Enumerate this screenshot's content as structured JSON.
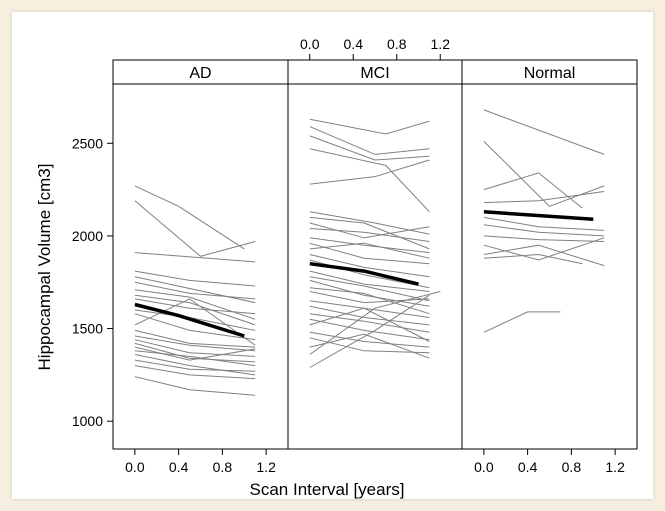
{
  "chart_data": {
    "type": "line",
    "ylabel": "Hippocampal Volume [cm3]",
    "xlabel": "Scan Interval [years]",
    "xlim": [
      -0.2,
      1.4
    ],
    "ylim": [
      850,
      2820
    ],
    "x_ticks": [
      "0.0",
      "0.4",
      "0.8",
      "1.2"
    ],
    "x_tick_values": [
      0.0,
      0.4,
      0.8,
      1.2
    ],
    "y_ticks": [
      "1000",
      "1500",
      "2000",
      "2500"
    ],
    "y_tick_values": [
      1000,
      1500,
      2000,
      2500
    ],
    "grid": false,
    "line_colors": {
      "individual": "#808080",
      "mean": "#000000"
    },
    "panels": [
      {
        "name": "AD",
        "x_axis_side": "bottom",
        "mean": {
          "x": [
            0.0,
            0.4,
            1.0
          ],
          "y": [
            1630,
            1570,
            1460
          ]
        },
        "individual": [
          {
            "x": [
              0.0,
              0.4,
              1.0
            ],
            "y": [
              2270,
              2160,
              1930
            ]
          },
          {
            "x": [
              0.0,
              0.6,
              1.1
            ],
            "y": [
              2190,
              1890,
              1970
            ]
          },
          {
            "x": [
              0.0,
              1.1
            ],
            "y": [
              1910,
              1860
            ]
          },
          {
            "x": [
              0.0,
              0.5,
              1.1
            ],
            "y": [
              1810,
              1760,
              1730
            ]
          },
          {
            "x": [
              0.0,
              1.1
            ],
            "y": [
              1780,
              1640
            ]
          },
          {
            "x": [
              0.0,
              0.5,
              1.1
            ],
            "y": [
              1750,
              1690,
              1660
            ]
          },
          {
            "x": [
              0.0,
              0.5,
              1.1
            ],
            "y": [
              1710,
              1670,
              1550
            ]
          },
          {
            "x": [
              0.0,
              0.5,
              1.1
            ],
            "y": [
              1680,
              1640,
              1520
            ]
          },
          {
            "x": [
              0.0,
              0.5,
              1.1
            ],
            "y": [
              1660,
              1610,
              1580
            ]
          },
          {
            "x": [
              0.0,
              0.5,
              1.1
            ],
            "y": [
              1600,
              1560,
              1490
            ]
          },
          {
            "x": [
              0.0,
              0.5,
              1.1
            ],
            "y": [
              1580,
              1490,
              1440
            ]
          },
          {
            "x": [
              0.0,
              0.5,
              1.1
            ],
            "y": [
              1520,
              1660,
              1410
            ]
          },
          {
            "x": [
              0.0,
              0.5,
              1.1
            ],
            "y": [
              1490,
              1420,
              1400
            ]
          },
          {
            "x": [
              0.0,
              0.5,
              1.1
            ],
            "y": [
              1460,
              1410,
              1380
            ]
          },
          {
            "x": [
              0.0,
              0.5,
              1.1
            ],
            "y": [
              1440,
              1370,
              1350
            ]
          },
          {
            "x": [
              0.0,
              0.5,
              1.1
            ],
            "y": [
              1420,
              1340,
              1320
            ]
          },
          {
            "x": [
              0.0,
              0.5,
              1.1
            ],
            "y": [
              1400,
              1330,
              1390
            ]
          },
          {
            "x": [
              0.0,
              0.5,
              1.1
            ],
            "y": [
              1380,
              1350,
              1300
            ]
          },
          {
            "x": [
              0.0,
              0.5,
              1.1
            ],
            "y": [
              1360,
              1300,
              1250
            ]
          },
          {
            "x": [
              0.0,
              0.5,
              1.1
            ],
            "y": [
              1330,
              1280,
              1270
            ]
          },
          {
            "x": [
              0.0,
              0.5,
              1.1
            ],
            "y": [
              1300,
              1250,
              1230
            ]
          },
          {
            "x": [
              0.0,
              0.5,
              1.1
            ],
            "y": [
              1240,
              1170,
              1140
            ]
          }
        ]
      },
      {
        "name": "MCI",
        "x_axis_side": "top",
        "mean": {
          "x": [
            0.0,
            0.5,
            1.0
          ],
          "y": [
            1850,
            1810,
            1740
          ]
        },
        "individual": [
          {
            "x": [
              0.0,
              0.7,
              1.1
            ],
            "y": [
              2630,
              2550,
              2620
            ]
          },
          {
            "x": [
              0.0,
              0.6,
              1.1
            ],
            "y": [
              2590,
              2440,
              2470
            ]
          },
          {
            "x": [
              0.0,
              0.6,
              1.1
            ],
            "y": [
              2540,
              2410,
              2430
            ]
          },
          {
            "x": [
              0.0,
              0.7,
              1.1
            ],
            "y": [
              2470,
              2380,
              2130
            ]
          },
          {
            "x": [
              0.0,
              0.6,
              1.1
            ],
            "y": [
              2280,
              2320,
              2410
            ]
          },
          {
            "x": [
              0.0,
              0.6,
              1.1
            ],
            "y": [
              2130,
              2070,
              2010
            ]
          },
          {
            "x": [
              0.0,
              0.5,
              1.1
            ],
            "y": [
              2100,
              2070,
              1930
            ]
          },
          {
            "x": [
              0.0,
              0.5,
              1.1
            ],
            "y": [
              2070,
              1990,
              2050
            ]
          },
          {
            "x": [
              0.0,
              0.5,
              1.1
            ],
            "y": [
              2040,
              2020,
              1970
            ]
          },
          {
            "x": [
              0.0,
              0.5,
              1.1
            ],
            "y": [
              1990,
              1950,
              1910
            ]
          },
          {
            "x": [
              0.0,
              0.5,
              1.1
            ],
            "y": [
              1960,
              1880,
              1850
            ]
          },
          {
            "x": [
              0.0,
              0.5,
              1.1
            ],
            "y": [
              1930,
              1960,
              1880
            ]
          },
          {
            "x": [
              0.0,
              0.5,
              1.1
            ],
            "y": [
              1900,
              1830,
              1780
            ]
          },
          {
            "x": [
              0.0,
              0.5,
              1.1
            ],
            "y": [
              1870,
              1790,
              1720
            ]
          },
          {
            "x": [
              0.0,
              0.5,
              1.1
            ],
            "y": [
              1810,
              1740,
              1700
            ]
          },
          {
            "x": [
              0.0,
              0.5,
              1.1
            ],
            "y": [
              1780,
              1730,
              1650
            ]
          },
          {
            "x": [
              0.0,
              0.5,
              1.1
            ],
            "y": [
              1760,
              1680,
              1620
            ]
          },
          {
            "x": [
              0.0,
              0.5,
              1.1
            ],
            "y": [
              1720,
              1690,
              1580
            ]
          },
          {
            "x": [
              0.0,
              0.5,
              1.1
            ],
            "y": [
              1700,
              1640,
              1660
            ]
          },
          {
            "x": [
              0.0,
              0.5,
              1.1
            ],
            "y": [
              1650,
              1610,
              1560
            ]
          },
          {
            "x": [
              0.0,
              0.5,
              1.1
            ],
            "y": [
              1620,
              1560,
              1520
            ]
          },
          {
            "x": [
              0.0,
              0.5,
              1.1
            ],
            "y": [
              1580,
              1540,
              1480
            ]
          },
          {
            "x": [
              0.0,
              0.5,
              1.1
            ],
            "y": [
              1550,
              1490,
              1440
            ]
          },
          {
            "x": [
              0.0,
              0.5,
              1.1
            ],
            "y": [
              1520,
              1610,
              1430
            ]
          },
          {
            "x": [
              0.0,
              0.5,
              1.1
            ],
            "y": [
              1480,
              1430,
              1400
            ]
          },
          {
            "x": [
              0.0,
              0.5,
              1.1
            ],
            "y": [
              1450,
              1380,
              1370
            ]
          },
          {
            "x": [
              0.0,
              0.5,
              1.1
            ],
            "y": [
              1400,
              1470,
              1340
            ]
          },
          {
            "x": [
              0.0,
              0.6,
              1.1
            ],
            "y": [
              1290,
              1490,
              1680
            ]
          },
          {
            "x": [
              0.0,
              0.6,
              1.2
            ],
            "y": [
              1360,
              1610,
              1700
            ]
          }
        ]
      },
      {
        "name": "Normal",
        "x_axis_side": "bottom",
        "mean": {
          "x": [
            0.0,
            1.0
          ],
          "y": [
            2130,
            2090
          ]
        },
        "individual": [
          {
            "x": [
              0.0,
              1.1
            ],
            "y": [
              2680,
              2440
            ]
          },
          {
            "x": [
              0.0,
              0.6,
              1.1
            ],
            "y": [
              2510,
              2160,
              2270
            ]
          },
          {
            "x": [
              0.0,
              0.5,
              0.9
            ],
            "y": [
              2250,
              2340,
              2150
            ]
          },
          {
            "x": [
              0.0,
              0.5,
              1.1
            ],
            "y": [
              2180,
              2190,
              2240
            ]
          },
          {
            "x": [
              0.0,
              0.5,
              1.1
            ],
            "y": [
              2100,
              2050,
              2030
            ]
          },
          {
            "x": [
              0.0,
              0.5,
              1.1
            ],
            "y": [
              2060,
              2020,
              2000
            ]
          },
          {
            "x": [
              0.0,
              0.5,
              1.1
            ],
            "y": [
              2000,
              1980,
              1970
            ]
          },
          {
            "x": [
              0.0,
              0.5,
              1.1
            ],
            "y": [
              1950,
              1870,
              1990
            ]
          },
          {
            "x": [
              0.0,
              0.5,
              1.1
            ],
            "y": [
              1900,
              1950,
              1840
            ]
          },
          {
            "x": [
              0.0,
              0.5,
              0.9
            ],
            "y": [
              1880,
              1900,
              1850
            ]
          },
          {
            "x": [
              0.0,
              0.4,
              0.7
            ],
            "y": [
              1480,
              1590,
              1590
            ]
          }
        ]
      }
    ]
  }
}
